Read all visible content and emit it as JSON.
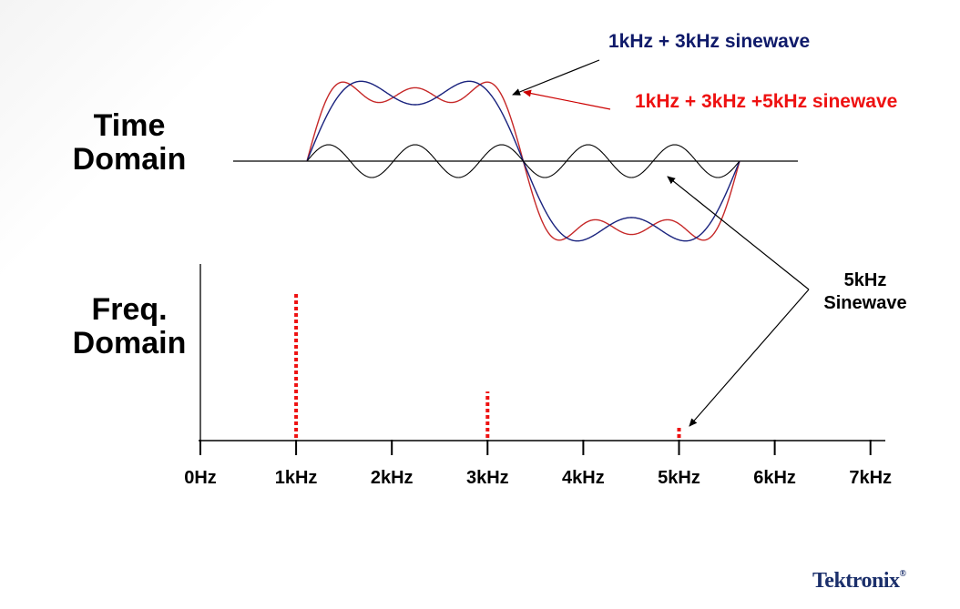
{
  "titles": {
    "time_line1": "Time",
    "time_line2": "Domain",
    "freq_line1": "Freq.",
    "freq_line2": "Domain"
  },
  "annotations": {
    "sum_1_3": "1kHz + 3kHz sinewave",
    "sum_1_3_5": "1kHz + 3kHz +5kHz sinewave",
    "five_khz_line1": "5kHz",
    "five_khz_line2": "Sinewave"
  },
  "colors": {
    "sum_1_3": "#1a237e",
    "sum_1_3_5": "#c62828",
    "five_khz": "#000000",
    "spectrum": "#ee1111",
    "label_1_3": "#0f1a6a",
    "label_1_3_5": "#ee1111"
  },
  "chart_data": {
    "type": "bar",
    "categories": [
      "0Hz",
      "1kHz",
      "2kHz",
      "3kHz",
      "4kHz",
      "5kHz",
      "6kHz",
      "7kHz"
    ],
    "values": [
      0,
      1,
      0,
      0.333,
      0,
      0.1,
      0,
      0
    ],
    "ylim": [
      0,
      1.2
    ],
    "grid": false
  },
  "logo": {
    "text": "Tektronix",
    "mark": "®"
  }
}
